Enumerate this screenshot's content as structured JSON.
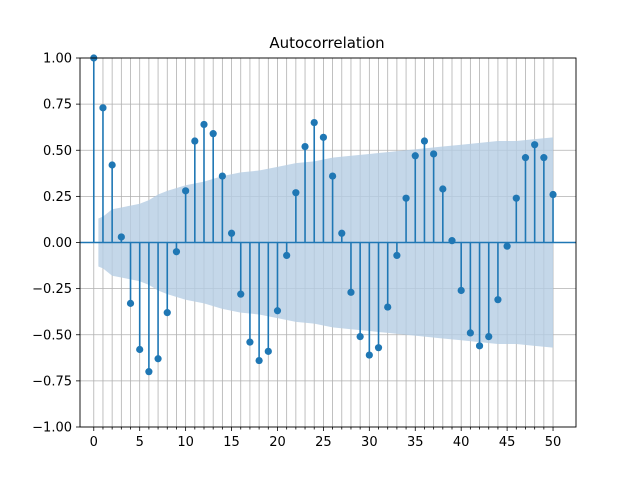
{
  "chart_data": {
    "type": "stem",
    "title": "Autocorrelation",
    "xlabel": "",
    "ylabel": "",
    "xlim": [
      -1.5,
      52.5
    ],
    "ylim": [
      -1.0,
      1.0
    ],
    "xticks": [
      0,
      5,
      10,
      15,
      20,
      25,
      30,
      35,
      40,
      45,
      50
    ],
    "yticks": [
      -1.0,
      -0.75,
      -0.5,
      -0.25,
      0.0,
      0.25,
      0.5,
      0.75,
      1.0
    ],
    "ytick_labels": [
      "−1.00",
      "−0.75",
      "−0.50",
      "−0.25",
      "0.00",
      "0.25",
      "0.50",
      "0.75",
      "1.00"
    ],
    "xtick_labels": [
      "0",
      "5",
      "10",
      "15",
      "20",
      "25",
      "30",
      "35",
      "40",
      "45",
      "50"
    ],
    "grid": true,
    "colors": {
      "stem": "#1f77b4",
      "band": "#b5cde3",
      "grid": "#b0b0b0"
    },
    "lags": [
      0,
      1,
      2,
      3,
      4,
      5,
      6,
      7,
      8,
      9,
      10,
      11,
      12,
      13,
      14,
      15,
      16,
      17,
      18,
      19,
      20,
      21,
      22,
      23,
      24,
      25,
      26,
      27,
      28,
      29,
      30,
      31,
      32,
      33,
      34,
      35,
      36,
      37,
      38,
      39,
      40,
      41,
      42,
      43,
      44,
      45,
      46,
      47,
      48,
      49,
      50
    ],
    "values": [
      1.0,
      0.73,
      0.42,
      0.03,
      -0.33,
      -0.58,
      -0.7,
      -0.63,
      -0.38,
      -0.05,
      0.28,
      0.55,
      0.64,
      0.59,
      0.36,
      0.05,
      -0.28,
      -0.54,
      -0.64,
      -0.59,
      -0.37,
      -0.07,
      0.27,
      0.52,
      0.65,
      0.57,
      0.36,
      0.05,
      -0.27,
      -0.51,
      -0.61,
      -0.57,
      -0.35,
      -0.07,
      0.24,
      0.47,
      0.55,
      0.48,
      0.29,
      0.01,
      -0.26,
      -0.49,
      -0.56,
      -0.51,
      -0.31,
      -0.02,
      0.24,
      0.46,
      0.53,
      0.46,
      0.26
    ],
    "confidence_band": {
      "lags": [
        0.5,
        1,
        2,
        3,
        4,
        5,
        6,
        7,
        8,
        10,
        12,
        14,
        16,
        18,
        20,
        22,
        24,
        26,
        28,
        30,
        32,
        34,
        36,
        38,
        40,
        42,
        44,
        46,
        48,
        50
      ],
      "upper": [
        0.13,
        0.14,
        0.18,
        0.19,
        0.2,
        0.21,
        0.23,
        0.26,
        0.28,
        0.31,
        0.33,
        0.36,
        0.38,
        0.39,
        0.41,
        0.43,
        0.44,
        0.46,
        0.47,
        0.48,
        0.49,
        0.5,
        0.51,
        0.52,
        0.53,
        0.54,
        0.55,
        0.55,
        0.56,
        0.57
      ]
    }
  }
}
